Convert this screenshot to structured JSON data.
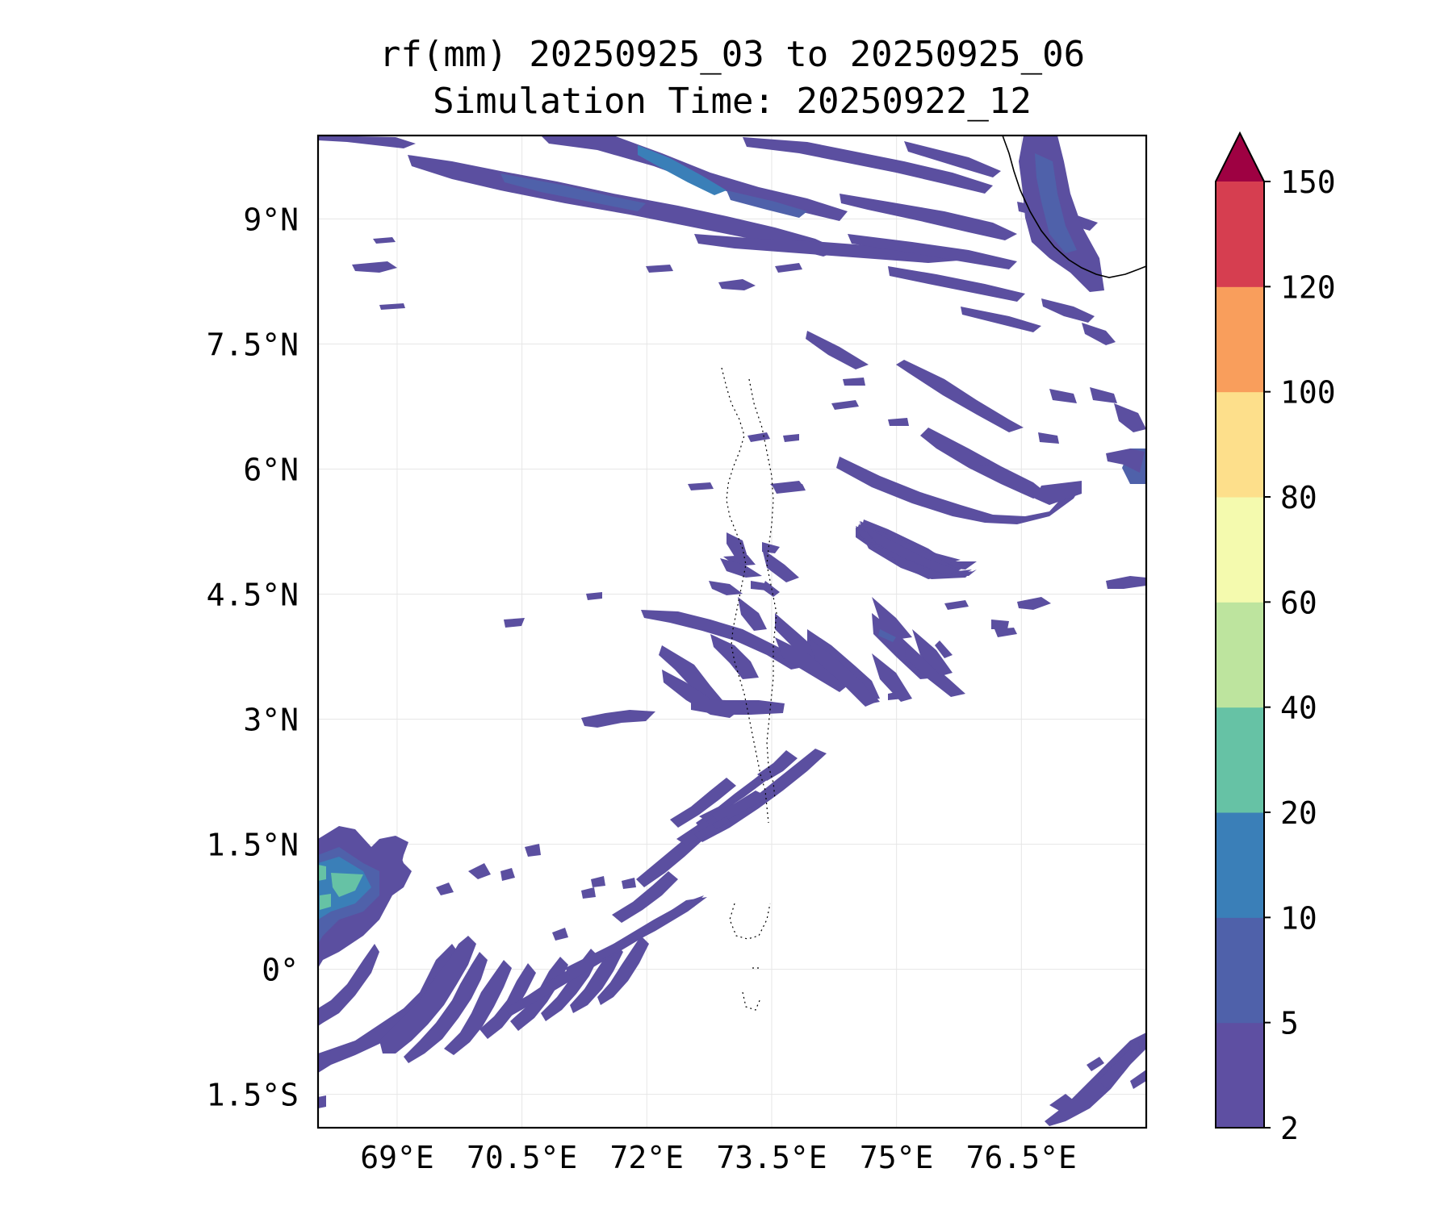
{
  "title": {
    "line1": "rf(mm) 20250925_03 to 20250925_06",
    "line2": "Simulation Time: 20250922_12"
  },
  "map": {
    "lon_range": [
      68.05,
      78.0
    ],
    "lat_range": [
      -1.9,
      10.0
    ],
    "x_ticks": [
      {
        "value": 69,
        "label": "69°E"
      },
      {
        "value": 70.5,
        "label": "70.5°E"
      },
      {
        "value": 72,
        "label": "72°E"
      },
      {
        "value": 73.5,
        "label": "73.5°E"
      },
      {
        "value": 75,
        "label": "75°E"
      },
      {
        "value": 76.5,
        "label": "76.5°E"
      }
    ],
    "y_ticks": [
      {
        "value": 9,
        "label": "9°N"
      },
      {
        "value": 7.5,
        "label": "7.5°N"
      },
      {
        "value": 6,
        "label": "6°N"
      },
      {
        "value": 4.5,
        "label": "4.5°N"
      },
      {
        "value": 3,
        "label": "3°N"
      },
      {
        "value": 1.5,
        "label": "1.5°N"
      },
      {
        "value": 0,
        "label": "0°"
      },
      {
        "value": -1.5,
        "label": "1.5°S"
      }
    ],
    "gridlines": true
  },
  "colorbar": {
    "levels": [
      "2",
      "5",
      "10",
      "20",
      "40",
      "60",
      "80",
      "100",
      "120",
      "150"
    ],
    "colors": [
      "#5e4fa2",
      "#4f61aa",
      "#3a7fb8",
      "#66c2a5",
      "#bde49e",
      "#f4faae",
      "#fddf8b",
      "#f99e5c",
      "#d63e50"
    ],
    "extend_color": "#9e0142",
    "extend": "max"
  },
  "rain_colors": {
    "light": "#5b4fa0",
    "medium": "#4f61aa",
    "heavy": "#3a7fb8",
    "intense": "#66c2a5"
  }
}
